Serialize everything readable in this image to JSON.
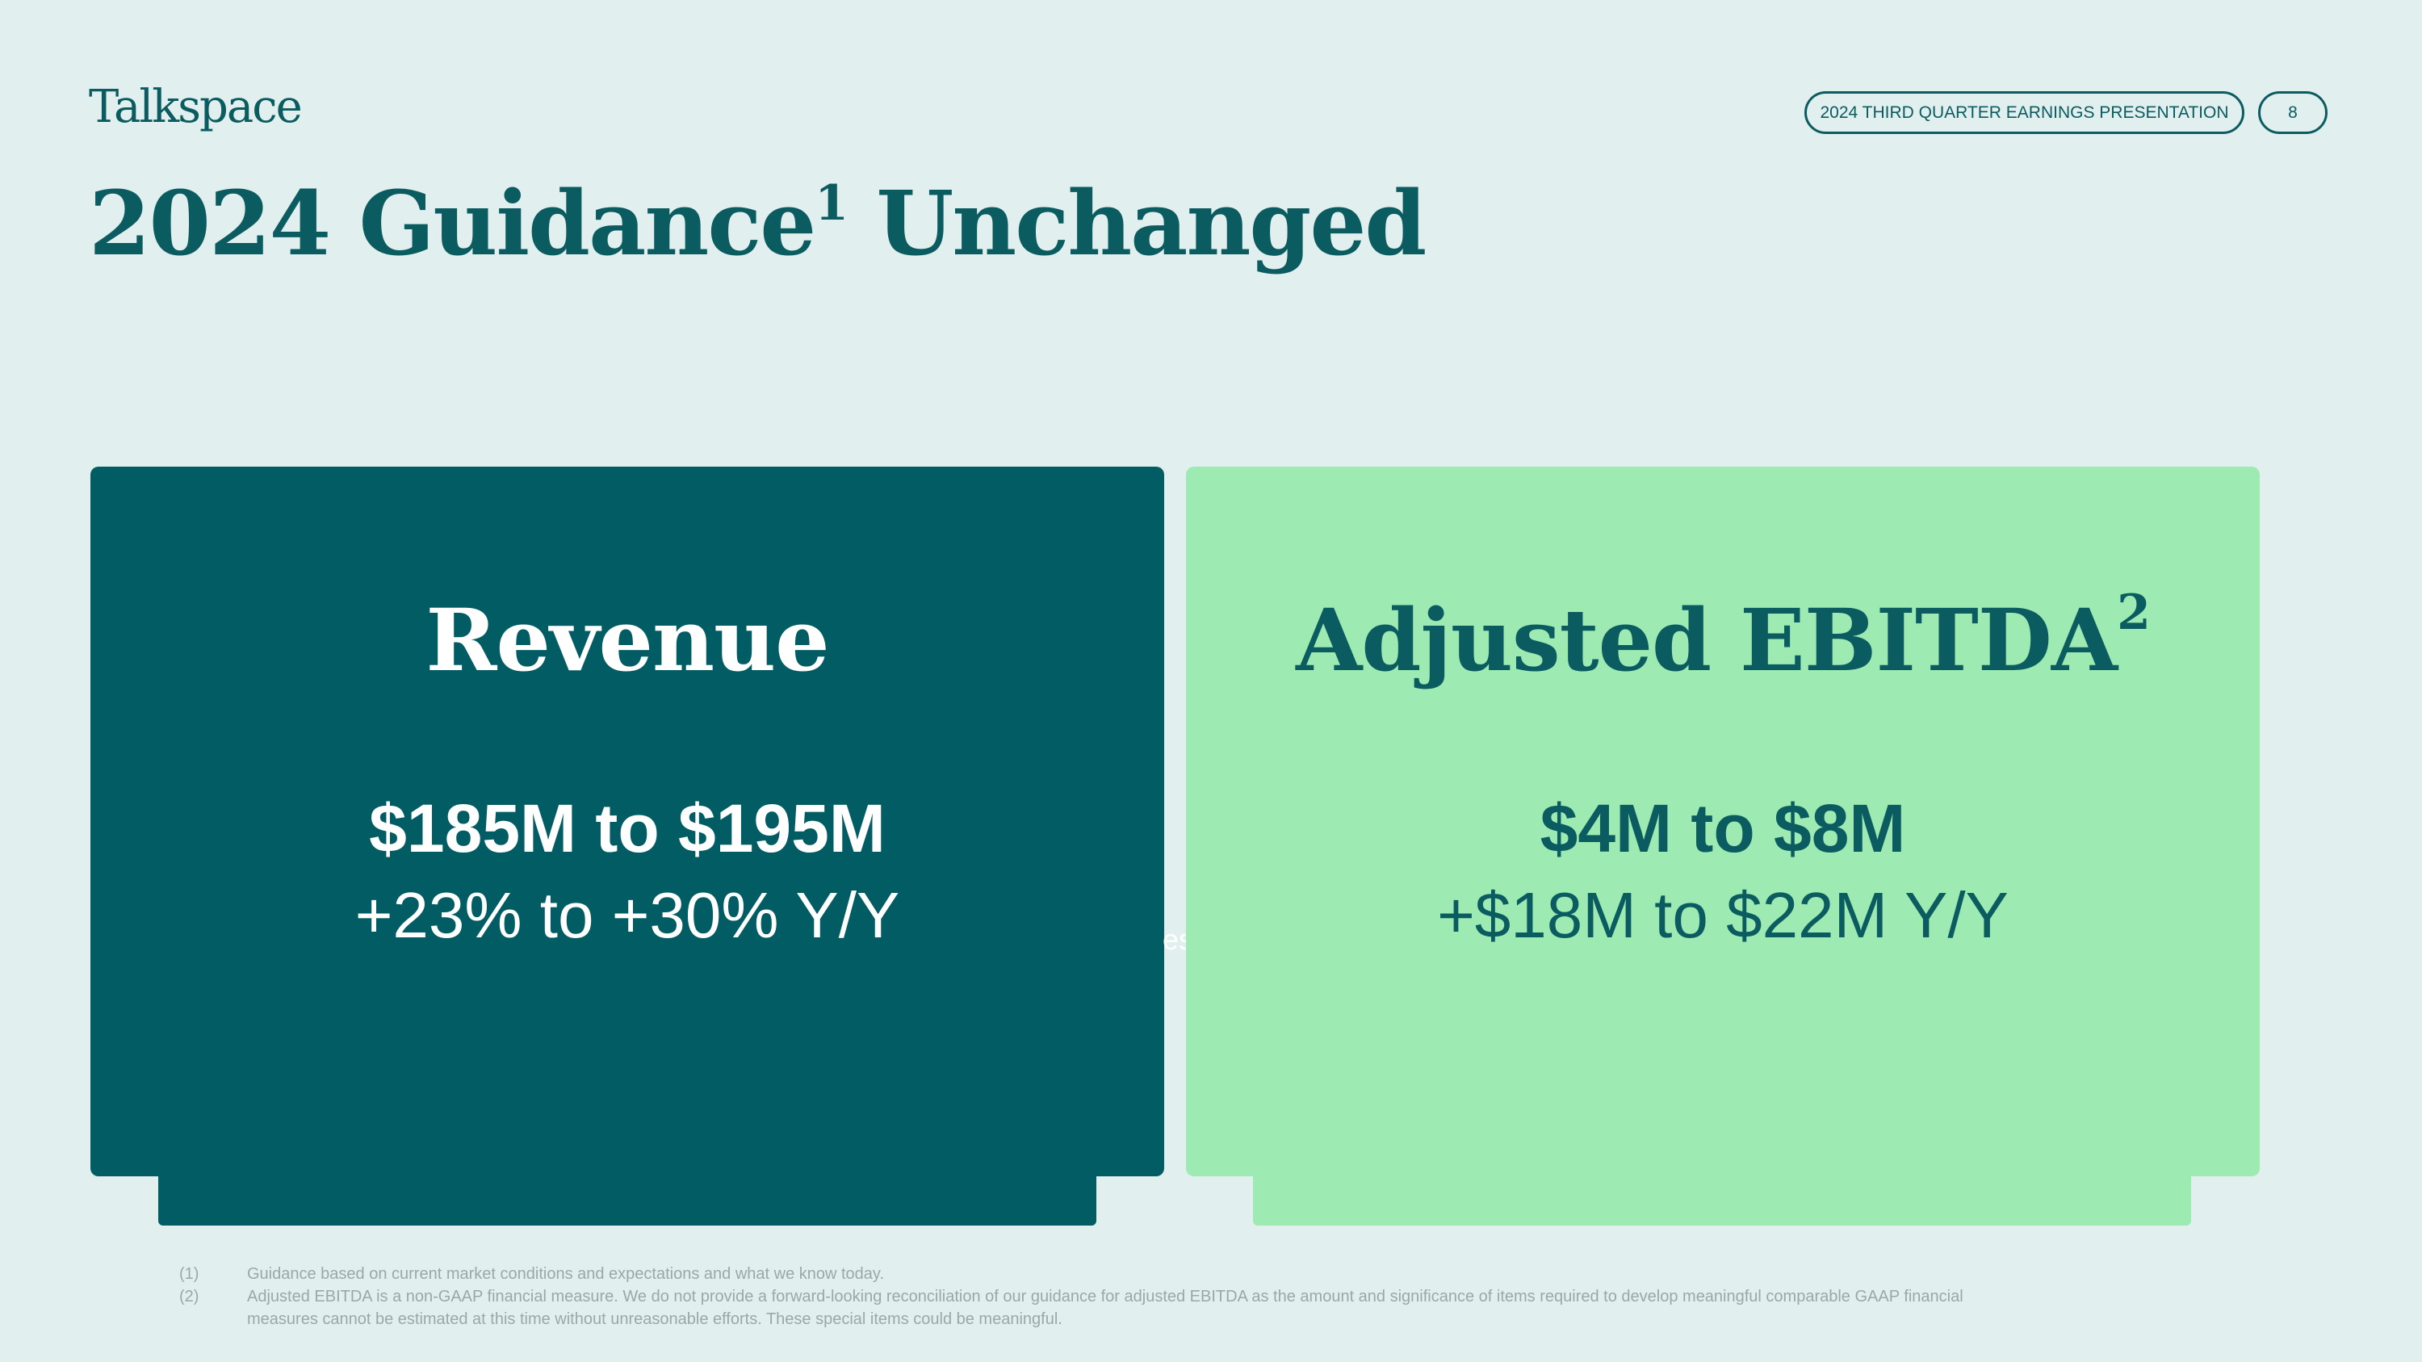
{
  "header": {
    "logo": "Talkspace",
    "presentation": "2024 THIRD QUARTER EARNINGS PRESENTATION",
    "page": "8"
  },
  "title": {
    "text": "2024 Guidance",
    "sup": "1",
    "rest": " Unchanged"
  },
  "cards": [
    {
      "title": "Revenue",
      "sup": "",
      "value": "$185M to $195M",
      "change": "+23% to +30% Y/Y"
    },
    {
      "title": "Adjusted EBITDA",
      "sup": "2",
      "value": "$4M to $8M",
      "change": "+$18M to $22M Y/Y"
    }
  ],
  "artifact": "es",
  "footnotes": [
    {
      "num": "(1)",
      "text": "Guidance based on current market conditions and expectations and what we know today."
    },
    {
      "num": "(2)",
      "text": "Adjusted EBITDA is a non-GAAP financial measure. We do not provide a forward-looking reconciliation of our guidance for adjusted EBITDA as the amount and significance of items required to develop meaningful comparable GAAP financial measures cannot be estimated at this time without unreasonable efforts. These special items could be meaningful."
    }
  ],
  "colors": {
    "background": "#e1efee",
    "dark_teal": "#015c63",
    "mint": "#9deab3"
  }
}
